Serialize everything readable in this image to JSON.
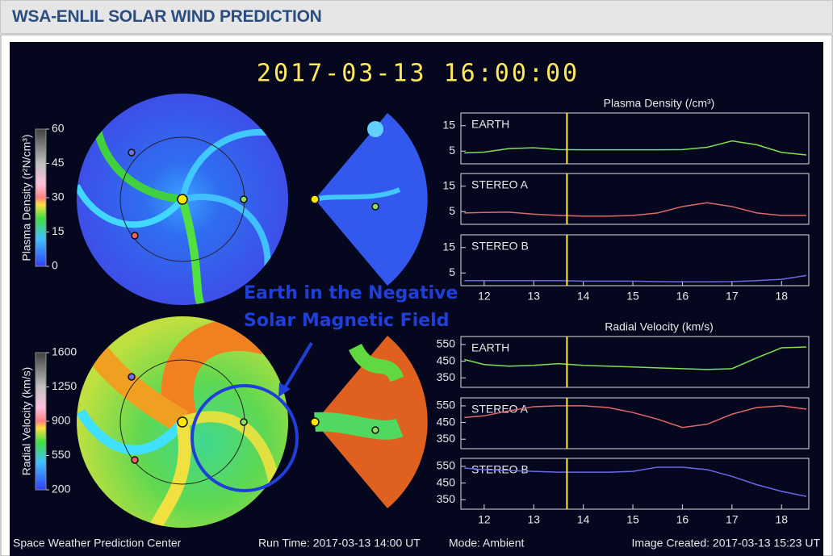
{
  "header": {
    "title": "WSA-ENLIL SOLAR WIND PREDICTION"
  },
  "timestamp": "2017-03-13 16:00:00",
  "annotation": [
    "Earth in the Negative",
    "Solar Magnetic Field"
  ],
  "footer": [
    "Space Weather Prediction Center",
    "Run Time: 2017-03-13 14:00 UT",
    "Mode: Ambient",
    "Image Created: 2017-03-13 15:23 UT"
  ],
  "colorbars": [
    {
      "label": "Plasma Density (r²N/cm³)",
      "ticks": [
        60,
        45,
        30,
        15,
        0
      ]
    },
    {
      "label": "Radial Velocity (km/s)",
      "ticks": [
        1600,
        1250,
        900,
        550,
        200
      ]
    }
  ],
  "current_time": 13.67,
  "chart_data": [
    {
      "type": "line",
      "title": "Plasma Density (/cm³)",
      "x": [
        11.6,
        12,
        12.5,
        13,
        13.5,
        14,
        14.5,
        15,
        15.5,
        16,
        16.5,
        17,
        17.5,
        18,
        18.5
      ],
      "series": [
        {
          "name": "EARTH",
          "color": "#80e050",
          "values": [
            4.3,
            4.6,
            6,
            6.3,
            5.6,
            5.5,
            5.5,
            5.5,
            5.5,
            5.6,
            6.5,
            9,
            7.5,
            4.5,
            3.5
          ]
        }
      ],
      "xlim": [
        11.53,
        18.55
      ],
      "ylim": [
        0,
        20
      ],
      "yticks": [
        5,
        15
      ]
    },
    {
      "type": "line",
      "x": [
        11.6,
        12,
        12.5,
        13,
        13.5,
        14,
        14.5,
        15,
        15.5,
        16,
        16.5,
        17,
        17.5,
        18,
        18.5
      ],
      "series": [
        {
          "name": "STEREO A",
          "color": "#e06868",
          "values": [
            4.5,
            4.7,
            4.8,
            4,
            3.5,
            3.2,
            3.2,
            3.5,
            4.5,
            7,
            8.5,
            7,
            4.5,
            3.5,
            3.5
          ]
        }
      ],
      "xlim": [
        11.53,
        18.55
      ],
      "ylim": [
        0,
        20
      ],
      "yticks": [
        5,
        15
      ]
    },
    {
      "type": "line",
      "x": [
        11.6,
        12,
        12.5,
        13,
        13.5,
        14,
        14.5,
        15,
        15.5,
        16,
        16.5,
        17,
        17.5,
        18,
        18.5
      ],
      "series": [
        {
          "name": "STEREO B",
          "color": "#6868e8",
          "values": [
            2,
            2,
            2,
            2,
            2,
            1.8,
            1.8,
            1.8,
            1.6,
            1.5,
            1.5,
            1.6,
            2,
            2.5,
            4
          ]
        }
      ],
      "xlim": [
        11.53,
        18.55
      ],
      "ylim": [
        0,
        20
      ],
      "yticks": [
        5,
        15
      ],
      "xticks": [
        12,
        13,
        14,
        15,
        16,
        17,
        18
      ]
    },
    {
      "type": "line",
      "title": "Radial Velocity (km/s)",
      "x": [
        11.6,
        12,
        12.5,
        13,
        13.5,
        14,
        14.5,
        15,
        15.5,
        16,
        16.5,
        17,
        17.5,
        18,
        18.5
      ],
      "series": [
        {
          "name": "EARTH",
          "color": "#80e050",
          "values": [
            460,
            430,
            420,
            425,
            435,
            425,
            420,
            415,
            410,
            405,
            400,
            405,
            470,
            530,
            535
          ]
        }
      ],
      "xlim": [
        11.53,
        18.55
      ],
      "ylim": [
        293,
        598
      ],
      "yticks": [
        350,
        450,
        550
      ]
    },
    {
      "type": "line",
      "x": [
        11.6,
        12,
        12.5,
        13,
        13.5,
        14,
        14.5,
        15,
        15.5,
        16,
        16.5,
        17,
        17.5,
        18,
        18.5
      ],
      "series": [
        {
          "name": "STEREO A",
          "color": "#e06868",
          "values": [
            480,
            490,
            520,
            545,
            550,
            550,
            540,
            510,
            470,
            420,
            440,
            500,
            540,
            550,
            530
          ]
        }
      ],
      "xlim": [
        11.53,
        18.55
      ],
      "ylim": [
        293,
        598
      ],
      "yticks": [
        350,
        450,
        550
      ]
    },
    {
      "type": "line",
      "x": [
        11.6,
        12,
        12.5,
        13,
        13.5,
        14,
        14.5,
        15,
        15.5,
        16,
        16.5,
        17,
        17.5,
        18,
        18.5
      ],
      "series": [
        {
          "name": "STEREO B",
          "color": "#6868e8",
          "values": [
            540,
            530,
            525,
            520,
            515,
            515,
            515,
            520,
            545,
            545,
            530,
            490,
            440,
            400,
            370
          ]
        }
      ],
      "xlim": [
        11.53,
        18.55
      ],
      "ylim": [
        293,
        598
      ],
      "yticks": [
        350,
        450,
        550
      ],
      "xticks": [
        12,
        13,
        14,
        15,
        16,
        17,
        18
      ]
    }
  ]
}
